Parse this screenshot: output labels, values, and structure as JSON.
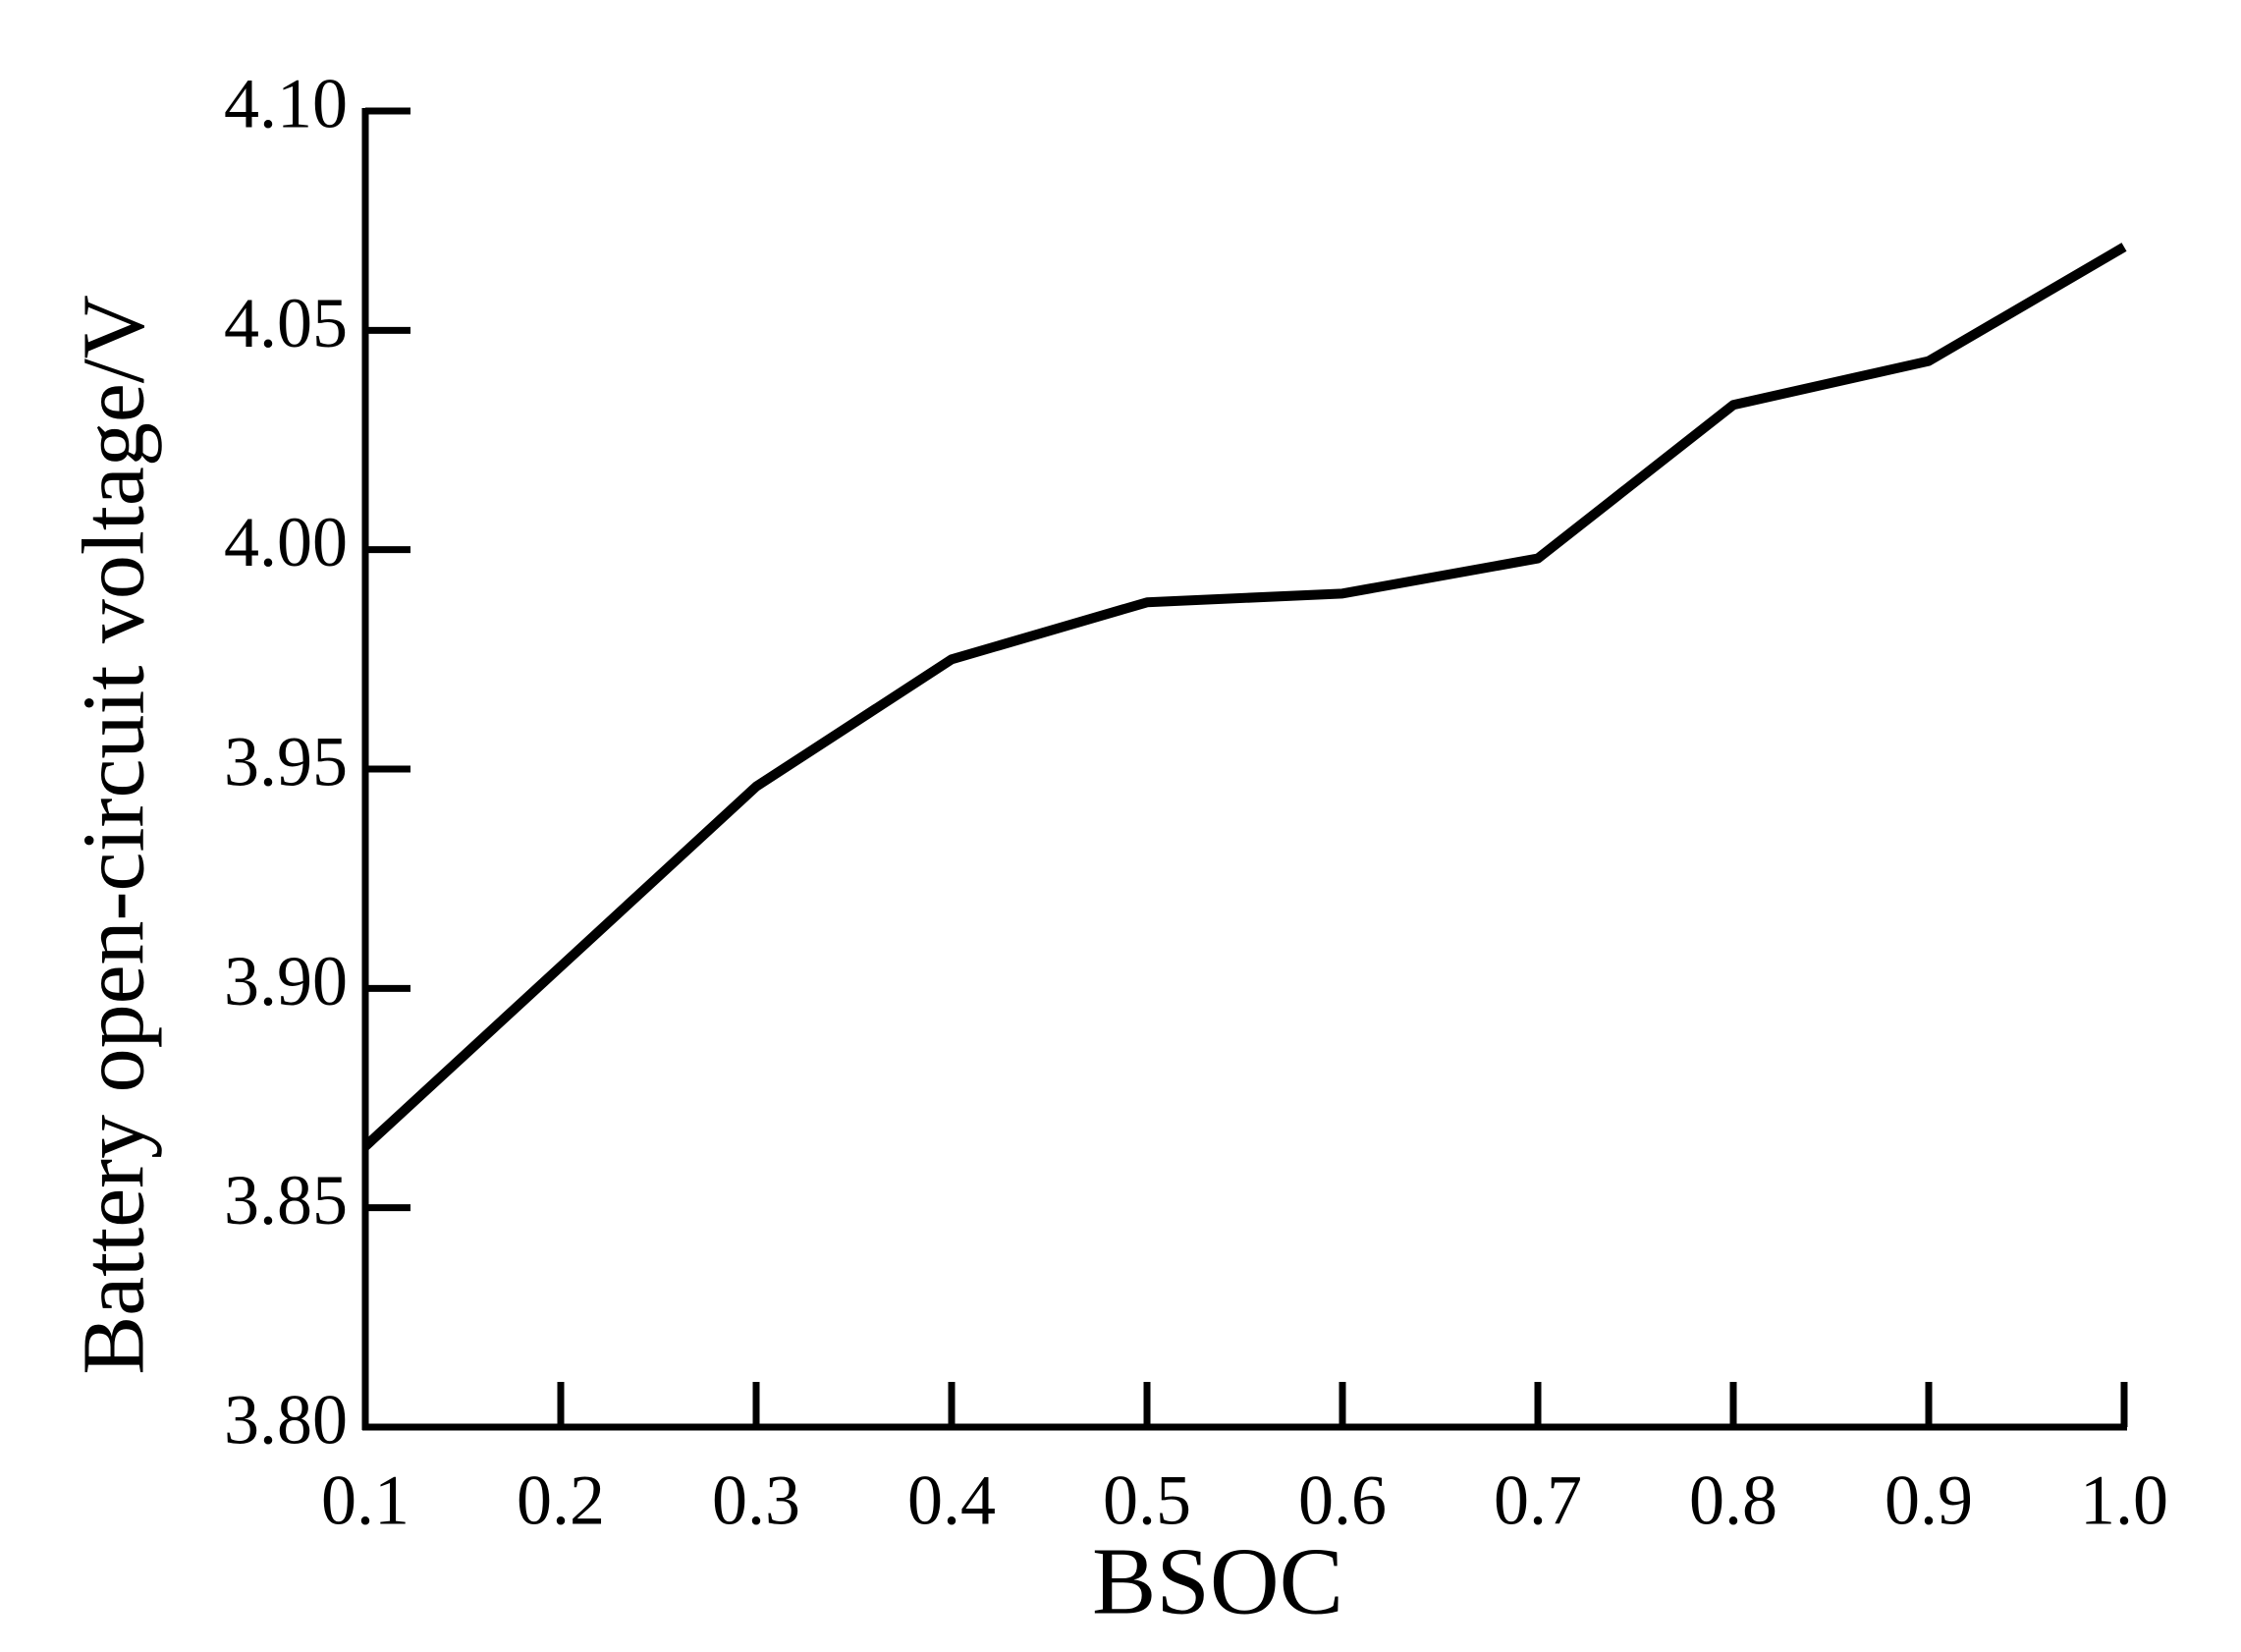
{
  "chart_data": {
    "type": "line",
    "x_label": "BSOC",
    "y_label": "Battery open-circuit voltage/V",
    "x": [
      0.1,
      0.2,
      0.3,
      0.4,
      0.5,
      0.6,
      0.7,
      0.8,
      0.9,
      1.0
    ],
    "values": [
      3.864,
      3.905,
      3.946,
      3.975,
      3.988,
      3.99,
      3.998,
      4.033,
      4.043,
      4.069
    ],
    "color": "#000000",
    "xlim": [
      0.1,
      1.0
    ],
    "xticks": [
      0.1,
      0.2,
      0.3,
      0.4,
      0.5,
      0.6,
      0.7,
      0.8,
      0.9,
      {
        "value": 1.0,
        "label": "1.0"
      }
    ],
    "ylim": [
      3.8,
      4.1
    ],
    "yticks": [
      {
        "value": 3.8,
        "label": "3.80"
      },
      3.85,
      {
        "value": 3.9,
        "label": "3.90"
      },
      3.95,
      {
        "value": 4.0,
        "label": "4.00"
      },
      4.05,
      {
        "value": 4.1,
        "label": "4.10"
      }
    ],
    "grid": false
  }
}
